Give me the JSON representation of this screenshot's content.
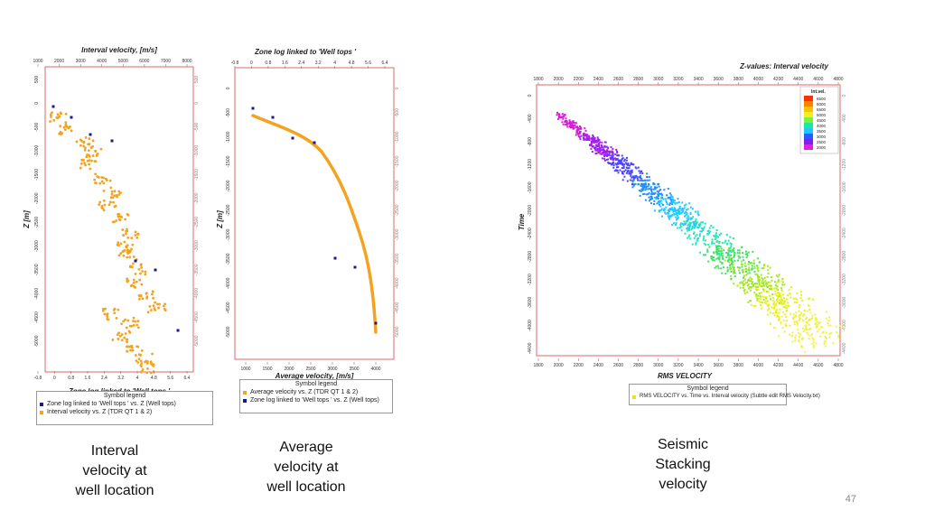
{
  "colors": {
    "orange": "#f4a21f",
    "navy": "#1a1a8c",
    "axis_red": "#c0392b",
    "frame": "#d96a6a"
  },
  "panel1": {
    "title": "Interval velocity, [m/s]",
    "top_ticks": [
      "1000",
      "2000",
      "3000",
      "4000",
      "5000",
      "6000",
      "7000",
      "8000"
    ],
    "bottom_ticks": [
      "-0.8",
      "0",
      "0.8",
      "1.6",
      "2.4",
      "3.2",
      "4",
      "4.8",
      "5.6",
      "6.4"
    ],
    "left_ticks": [
      "500",
      "0",
      "-500",
      "-1000",
      "-1500",
      "-2000",
      "-2500",
      "-3000",
      "-3500",
      "-4000",
      "-4500",
      "-5000"
    ],
    "ylabel": "Z [m]",
    "xlabel": "Zone log linked to 'Well tops '",
    "legend": {
      "title": "Symbol legend",
      "items": [
        "Zone log linked to 'Well tops ' vs. Z (Well tops)",
        "Interval velocity vs. Z (TDR  QT 1 & 2)"
      ]
    }
  },
  "panel2": {
    "title": "Zone log linked to 'Well tops '",
    "top_ticks": [
      "-0.8",
      "0",
      "0.8",
      "1.6",
      "2.4",
      "3.2",
      "4",
      "4.8",
      "5.6",
      "6.4"
    ],
    "bottom_ticks": [
      "1000",
      "1500",
      "2000",
      "2500",
      "3000",
      "3500",
      "4000"
    ],
    "left_ticks": [
      "0",
      "-500",
      "-1000",
      "-1500",
      "-2000",
      "-2500",
      "-3000",
      "-3500",
      "-4000",
      "-4500",
      "-5000"
    ],
    "ylabel": "Z [m]",
    "xlabel": "Average velocity, [m/s]",
    "legend": {
      "title": "Symbol legend",
      "items": [
        "Average velocity vs. Z (TDR  QT 1 & 2)",
        "Zone log linked to 'Well tops ' vs. Z (Well tops)"
      ]
    }
  },
  "panel3": {
    "title": "Z-values: Interval velocity",
    "top_ticks": [
      "1800",
      "2000",
      "2200",
      "2400",
      "2600",
      "2800",
      "3000",
      "3200",
      "3400",
      "3600",
      "3800",
      "4000",
      "4200",
      "4400",
      "4600",
      "4800"
    ],
    "bottom_ticks": [
      "1800",
      "2000",
      "2200",
      "2400",
      "2600",
      "2800",
      "3000",
      "3200",
      "3400",
      "3600",
      "3800",
      "4000",
      "4200",
      "4400",
      "4600",
      "4800"
    ],
    "left_ticks": [
      "0",
      "-400",
      "-800",
      "-1200",
      "-1600",
      "-2000",
      "-2400",
      "-2800",
      "-3200",
      "-3600",
      "-4000",
      "-4400"
    ],
    "ylabel": "Time",
    "xlabel": "RMS VELOCITY",
    "colorbar_title": "Int.vel.",
    "colorbar_ticks": [
      "6500",
      "6000",
      "5500",
      "5000",
      "4500",
      "4000",
      "3500",
      "3000",
      "2500",
      "2000"
    ],
    "legend": {
      "title": "Symbol legend",
      "items": [
        "RMS VELOCITY vs. Time vs. Interval velocity (Subtle edit RMS Velocity.txt)"
      ]
    }
  },
  "captions": {
    "c1": [
      "Interval",
      "velocity at",
      "well location"
    ],
    "c2": [
      "Average",
      "velocity at",
      "well location"
    ],
    "c3": [
      "Seismic",
      "Stacking",
      "velocity"
    ]
  },
  "page_number": "47"
}
